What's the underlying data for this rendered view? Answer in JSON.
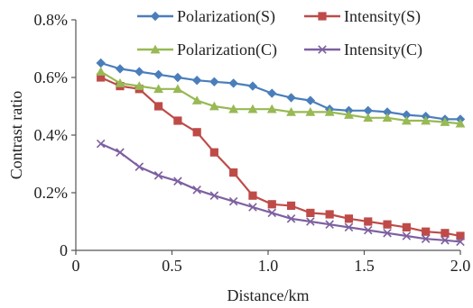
{
  "chart_data": {
    "type": "line",
    "xlabel": "Distance/km",
    "ylabel": "Contrast ratio",
    "xlim": [
      0,
      2.0
    ],
    "ylim": [
      0,
      0.008
    ],
    "grid": false,
    "legend_placement": "top",
    "x_ticks": [
      {
        "value": 0,
        "label": "0"
      },
      {
        "value": 0.5,
        "label": "0.5"
      },
      {
        "value": 1.0,
        "label": "1.0"
      },
      {
        "value": 1.5,
        "label": "1.5"
      },
      {
        "value": 2.0,
        "label": "2.0"
      }
    ],
    "y_ticks": [
      {
        "value": 0,
        "label": "0"
      },
      {
        "value": 0.002,
        "label": "0.2%"
      },
      {
        "value": 0.004,
        "label": "0.4%"
      },
      {
        "value": 0.006,
        "label": "0.6%"
      },
      {
        "value": 0.008,
        "label": "0.8%"
      }
    ],
    "x": [
      0.13,
      0.23,
      0.33,
      0.43,
      0.53,
      0.63,
      0.72,
      0.82,
      0.92,
      1.02,
      1.12,
      1.22,
      1.32,
      1.42,
      1.52,
      1.62,
      1.72,
      1.82,
      1.92,
      2.0
    ],
    "series": [
      {
        "name": "Polarization(S)",
        "color": "#4a7ebb",
        "marker": "diamond",
        "values": [
          0.0065,
          0.0063,
          0.0062,
          0.0061,
          0.006,
          0.0059,
          0.00585,
          0.0058,
          0.0057,
          0.00545,
          0.0053,
          0.0052,
          0.0049,
          0.00485,
          0.00485,
          0.0048,
          0.0047,
          0.00465,
          0.00455,
          0.00455
        ]
      },
      {
        "name": "Intensity(S)",
        "color": "#be4b48",
        "marker": "square",
        "values": [
          0.006,
          0.0057,
          0.0056,
          0.005,
          0.0045,
          0.0041,
          0.0034,
          0.0027,
          0.0019,
          0.0016,
          0.00155,
          0.0013,
          0.00125,
          0.0011,
          0.001,
          0.0009,
          0.0008,
          0.00065,
          0.0006,
          0.0005
        ]
      },
      {
        "name": "Polarization(C)",
        "color": "#98b954",
        "marker": "triangle",
        "values": [
          0.0062,
          0.0058,
          0.0057,
          0.0056,
          0.0056,
          0.0052,
          0.005,
          0.0049,
          0.0049,
          0.0049,
          0.0048,
          0.0048,
          0.0048,
          0.0047,
          0.0046,
          0.0046,
          0.0045,
          0.0045,
          0.00445,
          0.0044
        ]
      },
      {
        "name": "Intensity(C)",
        "color": "#7d60a0",
        "marker": "x",
        "values": [
          0.0037,
          0.0034,
          0.0029,
          0.0026,
          0.0024,
          0.0021,
          0.0019,
          0.0017,
          0.0015,
          0.0013,
          0.0011,
          0.001,
          0.0009,
          0.0008,
          0.0007,
          0.0006,
          0.0005,
          0.0004,
          0.00035,
          0.0003
        ]
      }
    ]
  }
}
